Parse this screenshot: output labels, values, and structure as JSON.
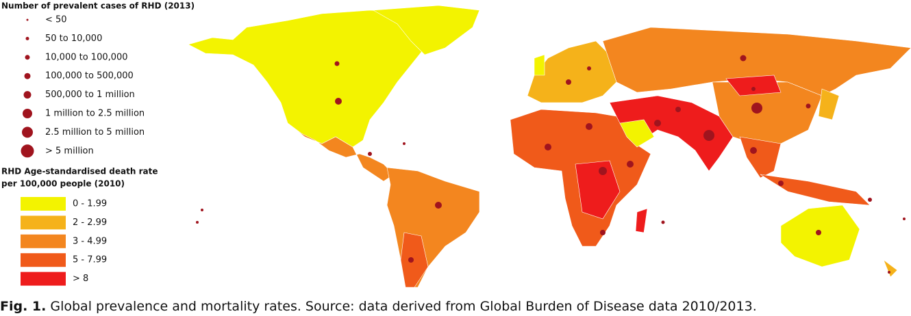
{
  "legend_prevalence": {
    "title": "Number of prevalent cases of RHD (2013)",
    "items": [
      "< 50",
      "50 to 10,000",
      "10,000 to 100,000",
      "100,000 to 500,000",
      "500,000 to 1 million",
      "1 million to 2.5 million",
      "2.5 million to 5 million",
      "> 5 million"
    ]
  },
  "legend_death_rate": {
    "title_lines": [
      "RHD Age-standardised death rate",
      "per 100,000 people (2010)"
    ],
    "items": [
      {
        "label": "0 - 1.99",
        "color": "#f3f300"
      },
      {
        "label": "2 - 2.99",
        "color": "#f5b21a"
      },
      {
        "label": "3 - 4.99",
        "color": "#f3861f"
      },
      {
        "label": "5 - 7.99",
        "color": "#f05a1a"
      },
      {
        "label": "> 8",
        "color": "#ee1c1c"
      }
    ]
  },
  "caption": {
    "label": "Fig. 1.",
    "text": "Global prevalence and mortality rates. Source: data derived from Global Burden of Disease data 2010/2013."
  }
}
